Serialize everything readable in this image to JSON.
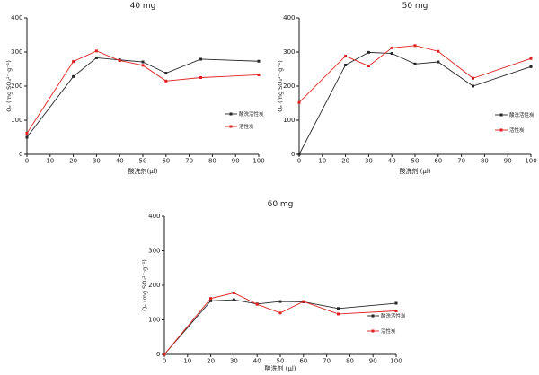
{
  "figure": {
    "background": "#ffffff"
  },
  "colors": {
    "axis": "#1a1a1a",
    "acid_washed_ac": "#262626",
    "ac": "#e02020"
  },
  "chart_data": [
    {
      "type": "line",
      "title": "40 mg",
      "xlabel": "酸洗剂(μl)",
      "ylabel": "Qₑ (mg SO₄²⁻·g⁻¹)",
      "xlim": [
        0,
        100
      ],
      "ylim": [
        0,
        400
      ],
      "xticks": [
        0,
        10,
        20,
        30,
        40,
        50,
        60,
        70,
        80,
        90,
        100
      ],
      "yticks": [
        0,
        100,
        200,
        300,
        400
      ],
      "grid": false,
      "legend_position": "inside-right-middle",
      "x": [
        0,
        20,
        30,
        40,
        50,
        60,
        75,
        100
      ],
      "series": [
        {
          "name": "酸洗活性炭",
          "color": "#262626",
          "marker": "square",
          "values": [
            50,
            228,
            283,
            277,
            271,
            238,
            279,
            273
          ]
        },
        {
          "name": "活性炭",
          "color": "#e02020",
          "marker": "square",
          "values": [
            62,
            272,
            303,
            275,
            261,
            215,
            225,
            233
          ]
        }
      ]
    },
    {
      "type": "line",
      "title": "50 mg",
      "xlabel": "酸洗剂 (μl)",
      "ylabel": "Qₑ (mg SO₄²⁻·g⁻¹)",
      "xlim": [
        0,
        100
      ],
      "ylim": [
        0,
        400
      ],
      "xticks": [
        0,
        10,
        20,
        30,
        40,
        50,
        60,
        70,
        80,
        90,
        100
      ],
      "yticks": [
        0,
        100,
        200,
        300,
        400
      ],
      "grid": false,
      "legend_position": "inside-right-middle",
      "x": [
        0,
        20,
        30,
        40,
        50,
        60,
        75,
        100
      ],
      "series": [
        {
          "name": "酸洗活性炭",
          "color": "#262626",
          "marker": "square",
          "values": [
            0,
            262,
            299,
            296,
            265,
            271,
            200,
            257
          ]
        },
        {
          "name": "活性炭",
          "color": "#e02020",
          "marker": "square",
          "values": [
            152,
            288,
            259,
            312,
            319,
            302,
            223,
            281
          ]
        }
      ]
    },
    {
      "type": "line",
      "title": "60 mg",
      "xlabel": "酸洗剂 (μl)",
      "ylabel": "Qₑ (mg SO₄²⁻·g⁻¹)",
      "xlim": [
        0,
        100
      ],
      "ylim": [
        0,
        400
      ],
      "xticks": [
        0,
        10,
        20,
        30,
        40,
        50,
        60,
        70,
        80,
        90,
        100
      ],
      "yticks": [
        0,
        100,
        200,
        300,
        400
      ],
      "grid": false,
      "legend_position": "inside-right-middle",
      "x": [
        0,
        20,
        30,
        40,
        50,
        60,
        75,
        100
      ],
      "series": [
        {
          "name": "酸洗活性炭",
          "color": "#262626",
          "marker": "square",
          "values": [
            0,
            155,
            158,
            146,
            153,
            152,
            133,
            148
          ]
        },
        {
          "name": "活性炭",
          "color": "#e02020",
          "marker": "square",
          "values": [
            0,
            162,
            178,
            145,
            120,
            153,
            117,
            126
          ]
        }
      ]
    }
  ]
}
